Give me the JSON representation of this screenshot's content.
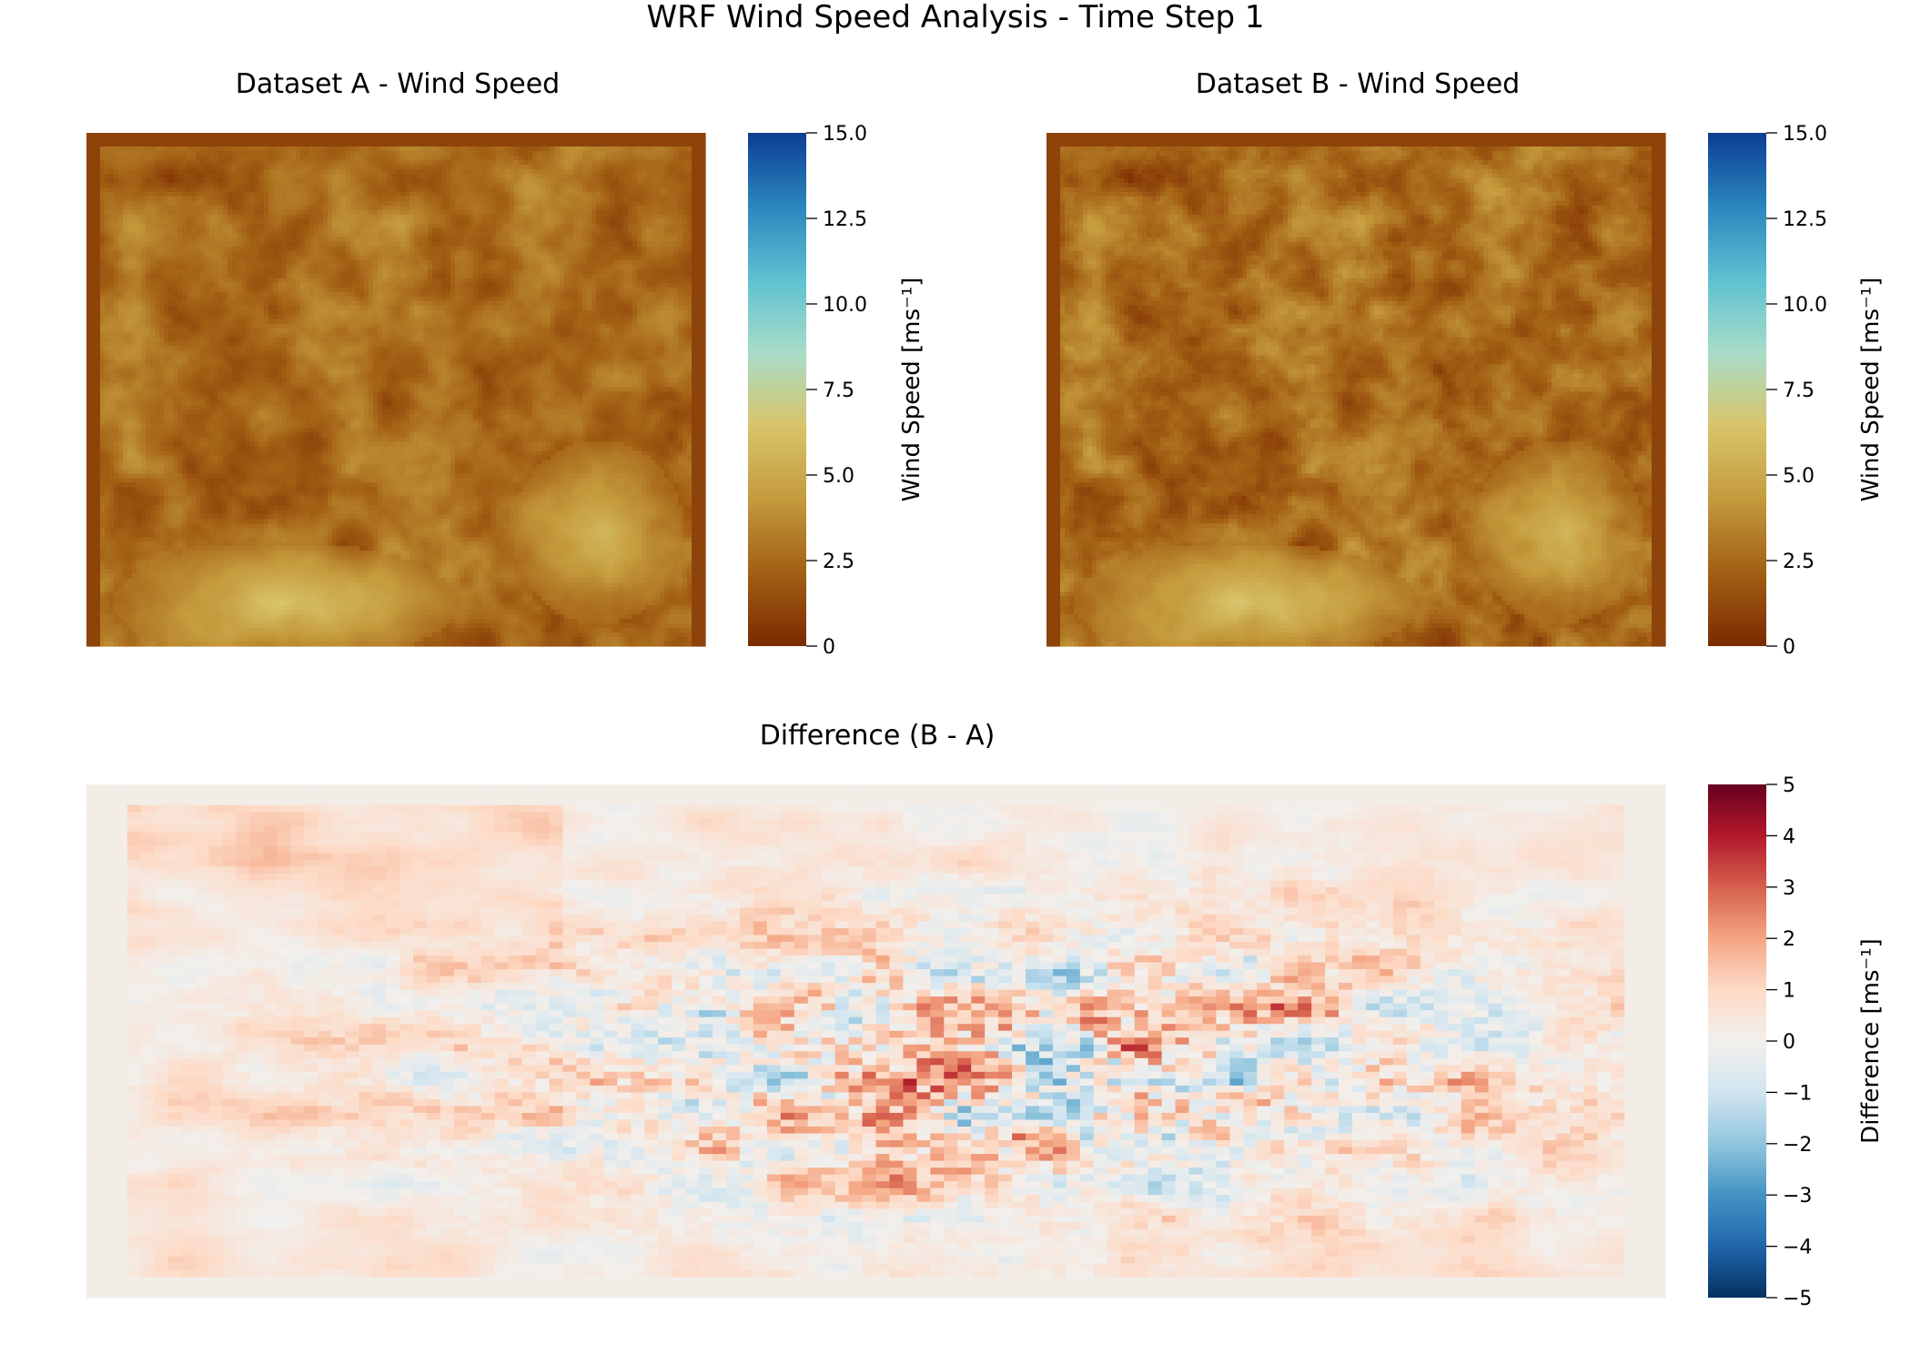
{
  "figure": {
    "title": "WRF Wind Speed Analysis - Time Step 1"
  },
  "chart_data": [
    {
      "type": "heatmap",
      "title": "Dataset A - Wind Speed",
      "xlabel": "",
      "ylabel": "",
      "axes_visible": false,
      "colormap": "earth-brown-to-blue",
      "colorbar": {
        "label": "Wind Speed [ms⁻¹]",
        "range": [
          0,
          15
        ],
        "ticks": [
          0,
          2.5,
          5,
          7.5,
          10,
          12.5,
          15
        ],
        "tick_labels": [
          "0",
          "2.5",
          "5.0",
          "7.5",
          "10.0",
          "12.5",
          "15.0"
        ],
        "colors": [
          "#7a2a00",
          "#a25f14",
          "#c49a3c",
          "#d8c46a",
          "#a8dcc8",
          "#5ec1d2",
          "#2b86bd",
          "#0b3d94"
        ]
      },
      "typical_range": [
        0.5,
        5.5
      ]
    },
    {
      "type": "heatmap",
      "title": "Dataset B - Wind Speed",
      "xlabel": "",
      "ylabel": "",
      "axes_visible": false,
      "colormap": "earth-brown-to-blue",
      "colorbar": {
        "label": "Wind Speed [ms⁻¹]",
        "range": [
          0,
          15
        ],
        "ticks": [
          0,
          2.5,
          5,
          7.5,
          10,
          12.5,
          15
        ],
        "tick_labels": [
          "0",
          "2.5",
          "5.0",
          "7.5",
          "10.0",
          "12.5",
          "15.0"
        ],
        "colors": [
          "#7a2a00",
          "#a25f14",
          "#c49a3c",
          "#d8c46a",
          "#a8dcc8",
          "#5ec1d2",
          "#2b86bd",
          "#0b3d94"
        ]
      },
      "typical_range": [
        0.5,
        6
      ]
    },
    {
      "type": "heatmap",
      "title": "Difference (B - A)",
      "xlabel": "",
      "ylabel": "",
      "axes_visible": false,
      "colormap": "RdBu_r",
      "colorbar": {
        "label": "Difference [ms⁻¹]",
        "range": [
          -5,
          5
        ],
        "ticks": [
          5,
          4,
          3,
          2,
          1,
          0,
          -1,
          -2,
          -3,
          -4,
          -5
        ],
        "tick_labels": [
          "5",
          "4",
          "3",
          "2",
          "1",
          "0",
          "−1",
          "−2",
          "−3",
          "−4",
          "−5"
        ],
        "colors": [
          "#053061",
          "#2166ac",
          "#4393c3",
          "#92c5de",
          "#d1e5f0",
          "#f2efec",
          "#fddbc7",
          "#f4a582",
          "#d6604d",
          "#b2182b",
          "#67001f"
        ]
      },
      "typical_range": [
        -3,
        4
      ]
    }
  ]
}
